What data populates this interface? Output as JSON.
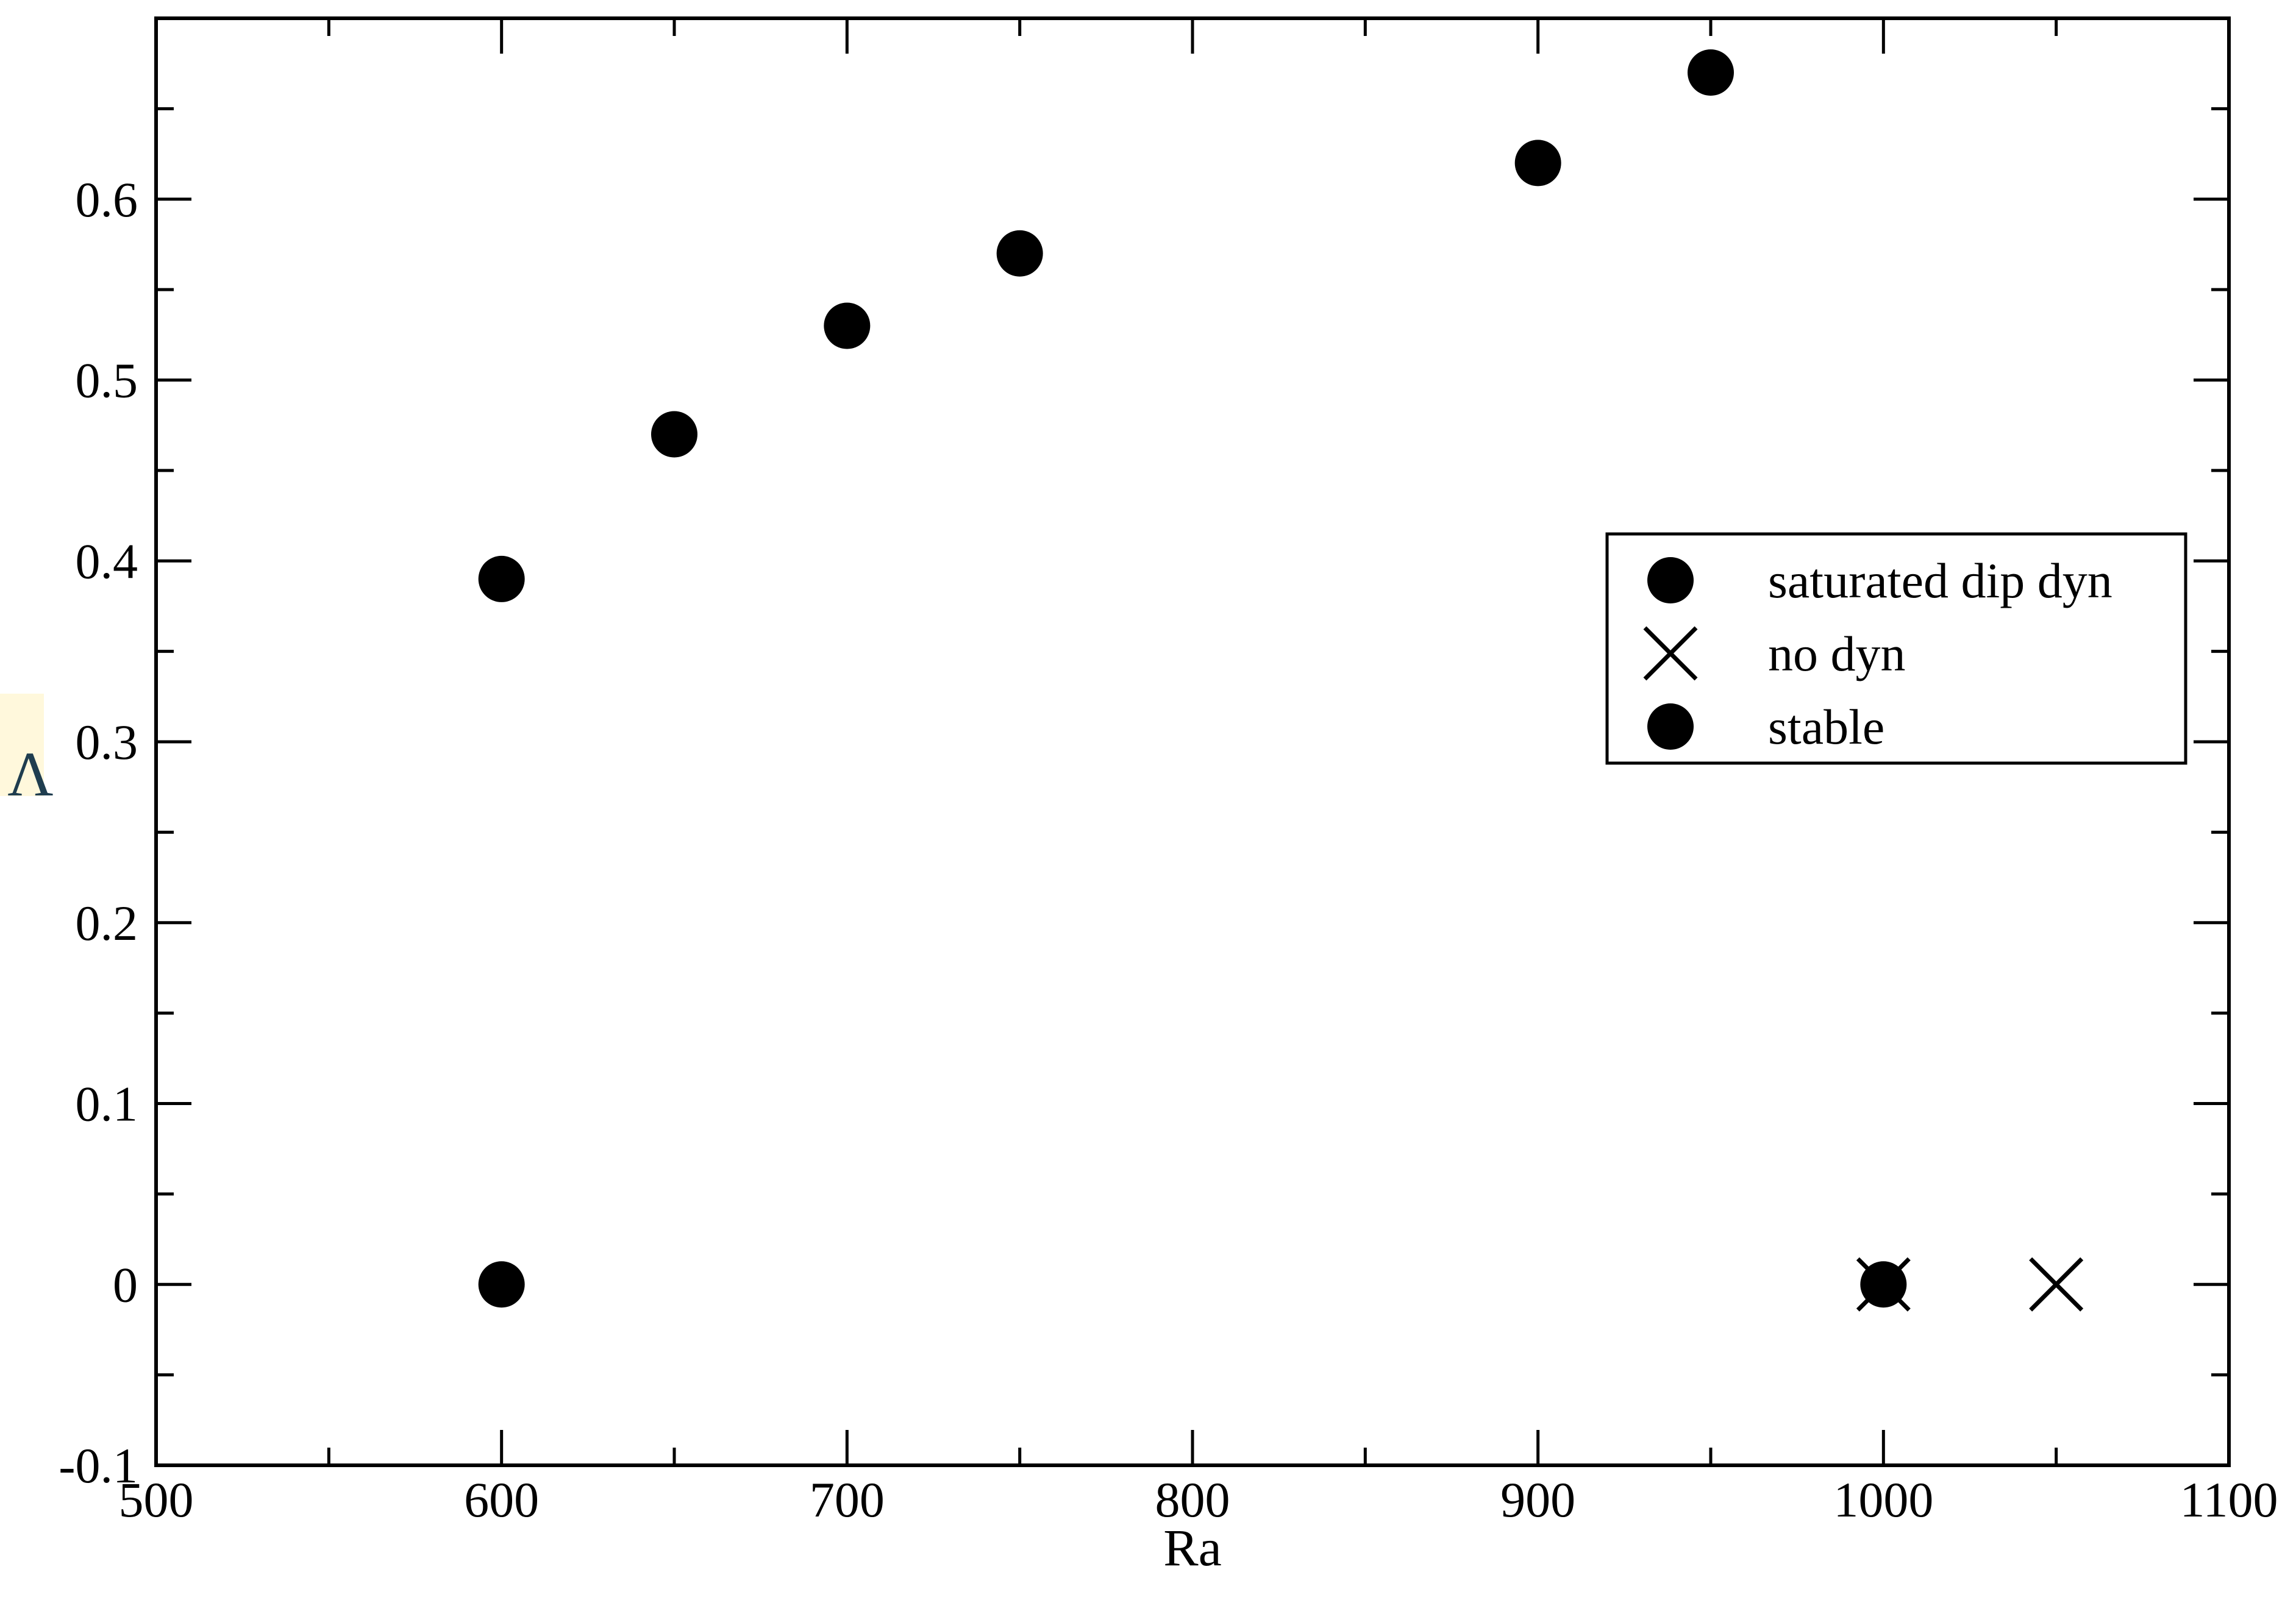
{
  "chart_data": {
    "type": "scatter",
    "xlabel": "Ra",
    "ylabel": "Λ",
    "xlim": [
      500,
      1100
    ],
    "ylim": [
      -0.1,
      0.7
    ],
    "x_ticks": [
      500,
      600,
      700,
      800,
      900,
      1000,
      1100
    ],
    "x_minor_ticks": [
      550,
      650,
      750,
      850,
      950,
      1050
    ],
    "x_tick_labels": [
      "500",
      "600",
      "700",
      "800",
      "900",
      "1000",
      "1100"
    ],
    "y_ticks": [
      -0.1,
      0,
      0.1,
      0.2,
      0.3,
      0.4,
      0.5,
      0.6
    ],
    "y_minor_ticks": [
      -0.05,
      0.05,
      0.15,
      0.25,
      0.35,
      0.45,
      0.55,
      0.65
    ],
    "y_tick_labels": [
      "-0.1",
      "0",
      "0.1",
      "0.2",
      "0.3",
      "0.4",
      "0.5",
      "0.6"
    ],
    "grid": false,
    "legend_position": "upper-right",
    "series": [
      {
        "name": "saturated dip dyn",
        "marker": "circle",
        "color": "#000000",
        "points": [
          {
            "x": 600,
            "y": 0.39
          },
          {
            "x": 650,
            "y": 0.47
          },
          {
            "x": 700,
            "y": 0.53
          },
          {
            "x": 750,
            "y": 0.57
          },
          {
            "x": 900,
            "y": 0.62
          },
          {
            "x": 950,
            "y": 0.67
          }
        ]
      },
      {
        "name": "no dyn",
        "marker": "cross",
        "color": "#000000",
        "points": [
          {
            "x": 1000,
            "y": 0
          },
          {
            "x": 1050,
            "y": 0
          }
        ]
      },
      {
        "name": "stable",
        "marker": "circle",
        "color": "#000000",
        "points": [
          {
            "x": 600,
            "y": 0
          },
          {
            "x": 1000,
            "y": 0
          }
        ]
      }
    ],
    "ylabel_color": "#1f3d4f",
    "ylabel_highlight": "#fff8dc"
  }
}
